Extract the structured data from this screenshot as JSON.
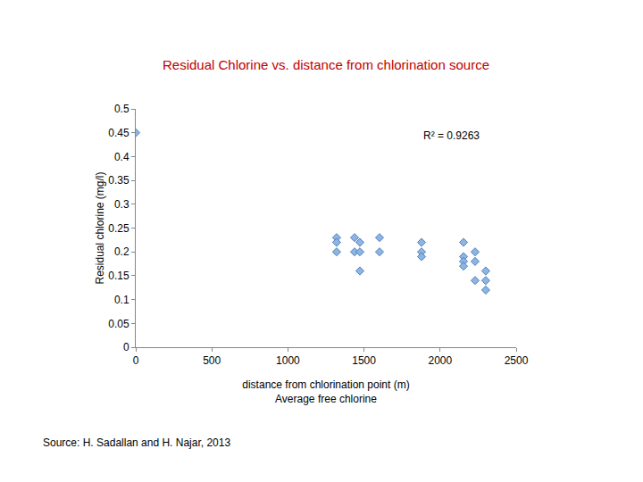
{
  "chart_data": {
    "type": "scatter",
    "title": "Residual Chlorine vs. distance from chlorination source",
    "x_label": "distance from chlorination point (m)\nAverage free chlorine",
    "y_label": "Residual chlorine (mg/l)",
    "annotations": [
      "R² = 0.9263",
      "Source: H. Sadallan and H. Najar, 2013"
    ],
    "x": [
      0,
      1320,
      1320,
      1320,
      1438,
      1438,
      1473,
      1473,
      1473,
      1602,
      1602,
      1878,
      1878,
      1878,
      2154,
      2154,
      2154,
      2154,
      2230,
      2230,
      2230,
      2300,
      2300,
      2300
    ],
    "values": [
      0.45,
      0.23,
      0.22,
      0.2,
      0.23,
      0.2,
      0.22,
      0.2,
      0.16,
      0.23,
      0.2,
      0.22,
      0.2,
      0.19,
      0.22,
      0.19,
      0.18,
      0.17,
      0.2,
      0.18,
      0.14,
      0.16,
      0.14,
      0.12
    ],
    "color": "#8db4e2",
    "marker": "diamond",
    "xlim": [
      0,
      2500
    ],
    "xticks": [
      0,
      500,
      1000,
      1500,
      2000,
      2500
    ],
    "ylim": [
      0,
      0.5
    ],
    "yticks": [
      0,
      0.05,
      0.1,
      0.15,
      0.2,
      0.25,
      0.3,
      0.35,
      0.4,
      0.45,
      0.5
    ],
    "grid": false
  }
}
